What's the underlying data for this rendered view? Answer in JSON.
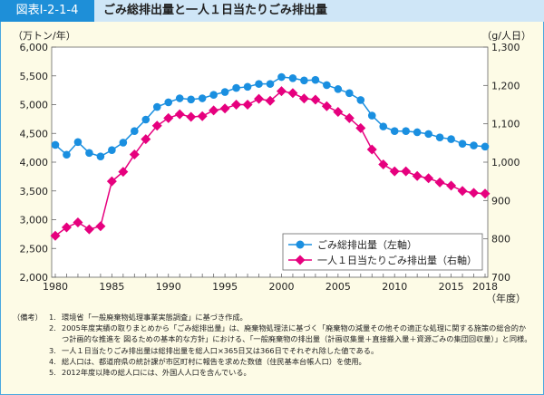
{
  "header": {
    "figure_id": "図表Ⅰ-2-1-4",
    "title": "ごみ総排出量と一人１日当たりごみ排出量"
  },
  "chart_data": {
    "type": "line",
    "title": "ごみ総排出量と一人１日当たりごみ排出量",
    "xlabel": "（年度）",
    "ylabel_left": "（万トン/年）",
    "ylabel_right": "（g/人日）",
    "ylim_left": [
      2000,
      6000
    ],
    "ylim_right": [
      700,
      1300
    ],
    "yticks_left": [
      "2,000",
      "2,500",
      "3,000",
      "3,500",
      "4,000",
      "4,500",
      "5,000",
      "5,500",
      "6,000"
    ],
    "yticks_right": [
      "700",
      "800",
      "900",
      "1,000",
      "1,100",
      "1,200",
      "1,300"
    ],
    "xticks": [
      "1980",
      "1985",
      "1990",
      "1995",
      "2000",
      "2005",
      "2010",
      "2015",
      "2018"
    ],
    "legend_position": "bottom-right",
    "grid": false,
    "x": [
      1980,
      1981,
      1982,
      1983,
      1984,
      1985,
      1986,
      1987,
      1988,
      1989,
      1990,
      1991,
      1992,
      1993,
      1994,
      1995,
      1996,
      1997,
      1998,
      1999,
      2000,
      2001,
      2002,
      2003,
      2004,
      2005,
      2006,
      2007,
      2008,
      2009,
      2010,
      2011,
      2012,
      2013,
      2014,
      2015,
      2016,
      2017,
      2018
    ],
    "series": [
      {
        "name": "ごみ総排出量（左軸）",
        "axis": "left",
        "color": "#1a8fe0",
        "marker": "circle",
        "values": [
          4300,
          4130,
          4350,
          4160,
          4100,
          4210,
          4340,
          4540,
          4740,
          4960,
          5040,
          5110,
          5090,
          5110,
          5170,
          5220,
          5290,
          5310,
          5360,
          5360,
          5480,
          5460,
          5420,
          5430,
          5340,
          5270,
          5200,
          5080,
          4810,
          4620,
          4540,
          4540,
          4520,
          4490,
          4430,
          4400,
          4320,
          4290,
          4270
        ]
      },
      {
        "name": "一人１日当たりごみ排出量（右軸）",
        "axis": "right",
        "color": "#e6007e",
        "marker": "diamond",
        "values": [
          808,
          830,
          843,
          825,
          833,
          950,
          975,
          1020,
          1060,
          1095,
          1115,
          1125,
          1118,
          1120,
          1135,
          1140,
          1150,
          1150,
          1165,
          1160,
          1185,
          1180,
          1166,
          1163,
          1146,
          1131,
          1115,
          1089,
          1033,
          994,
          976,
          976,
          964,
          958,
          947,
          939,
          925,
          920,
          918
        ]
      }
    ]
  },
  "notes": {
    "label": "（備考）",
    "items": [
      {
        "num": "1.",
        "text": "環境省「一般廃棄物処理事業実態調査」に基づき作成。"
      },
      {
        "num": "2.",
        "text": "2005年度実績の取りまとめから「ごみ総排出量」は、廃棄物処理法に基づく「廃棄物の減量その他その適正な処理に関する施策の総合的かつ計画的な推進を 図るための基本的な方針」における、「一般廃棄物の排出量（計画収集量＋直接搬入量＋資源ごみの集団回収量）」と同様。"
      },
      {
        "num": "3.",
        "text": "一人１日当たりごみ排出量は総排出量を総人口×365日又は366日でそれぞれ除した値である。"
      },
      {
        "num": "4.",
        "text": "総人口は、都道府県の統計課が市区町村に報告を求めた数値（住民基本台帳人口）を使用。"
      },
      {
        "num": "5.",
        "text": "2012年度以降の総人口には、外国人人口を含んでいる。"
      }
    ]
  }
}
